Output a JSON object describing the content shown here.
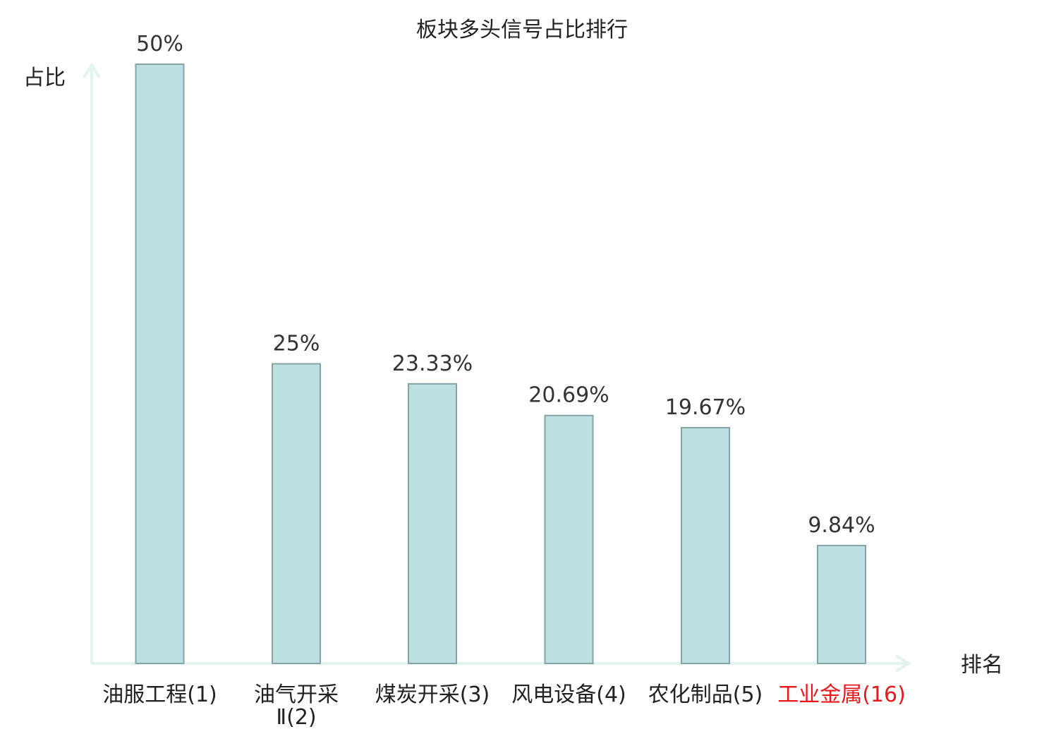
{
  "chart_data": {
    "type": "bar",
    "title": "板块多头信号占比排行",
    "ylabel": "占比",
    "xlabel": "排名",
    "ylim": [
      0,
      50
    ],
    "grid": false,
    "categories": [
      "油服工程(1)",
      "油气开采Ⅱ(2)",
      "煤炭开采(3)",
      "风电设备(4)",
      "农化制品(5)",
      "工业金属(16)"
    ],
    "category_lines": [
      [
        "油服工程(1)"
      ],
      [
        "油气开采",
        "Ⅱ(2)"
      ],
      [
        "煤炭开采(3)"
      ],
      [
        "风电设备(4)"
      ],
      [
        "农化制品(5)"
      ],
      [
        "工业金属(16)"
      ]
    ],
    "values": [
      50,
      25,
      23.33,
      20.69,
      19.67,
      9.84
    ],
    "value_labels": [
      "50%",
      "25%",
      "23.33%",
      "20.69%",
      "19.67%",
      "9.84%"
    ],
    "highlight": [
      false,
      false,
      false,
      false,
      false,
      true
    ]
  },
  "colors": {
    "bar_fill": "#bde0e2",
    "bar_stroke": "#86a3a6",
    "axis": "#e2f3f0",
    "text": "#222222",
    "highlight": "#e8191b"
  }
}
